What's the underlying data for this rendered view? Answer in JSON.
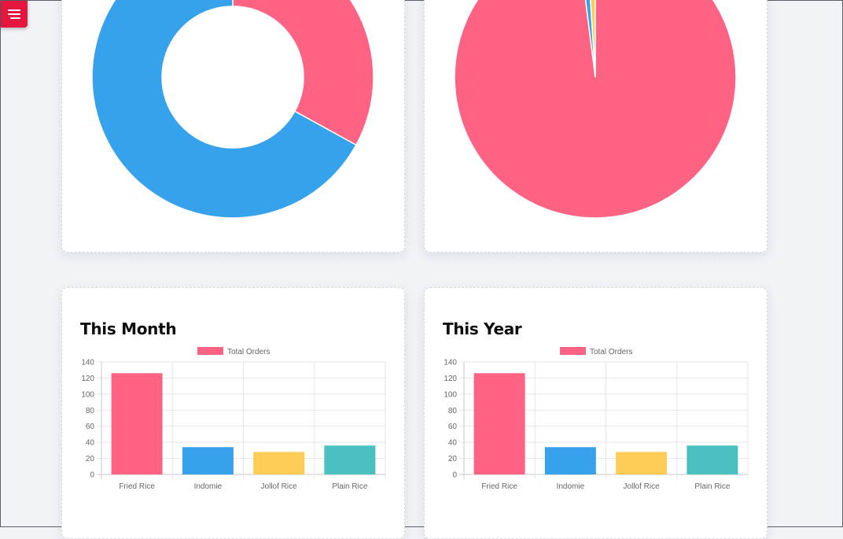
{
  "page": {
    "menu_icon": "hamburger-menu-icon",
    "accent_color": "#e5173f"
  },
  "charts": [
    {
      "type": "doughnut",
      "slices": [
        {
          "value": 33,
          "color": "#ff6384"
        },
        {
          "value": 67,
          "color": "#36a2eb"
        }
      ]
    },
    {
      "type": "pie",
      "slices": [
        {
          "value": 98,
          "color": "#ff6384"
        },
        {
          "value": 1,
          "color": "#36a2eb"
        },
        {
          "value": 1,
          "color": "#ffcd56"
        }
      ]
    }
  ],
  "chart_data": [
    {
      "type": "bar",
      "title": "This Month",
      "legend": {
        "label": "Total Orders",
        "placement": "top"
      },
      "categories": [
        "Fried Rice",
        "Indomie",
        "Jollof Rice",
        "Plain Rice"
      ],
      "values": [
        126,
        34,
        28,
        36
      ],
      "colors": [
        "#ff6384",
        "#36a2eb",
        "#ffcd56",
        "#4bc0c0"
      ],
      "ylim": [
        0,
        140
      ],
      "yticks": [
        "0",
        "20",
        "40",
        "60",
        "80",
        "100",
        "120",
        "140"
      ],
      "grid": true
    },
    {
      "type": "bar",
      "title": "This Year",
      "legend": {
        "label": "Total Orders",
        "placement": "top"
      },
      "categories": [
        "Fried Rice",
        "Indomie",
        "Jollof Rice",
        "Plain Rice"
      ],
      "values": [
        126,
        34,
        28,
        36
      ],
      "colors": [
        "#ff6384",
        "#36a2eb",
        "#ffcd56",
        "#4bc0c0"
      ],
      "ylim": [
        0,
        140
      ],
      "yticks": [
        "0",
        "20",
        "40",
        "60",
        "80",
        "100",
        "120",
        "140"
      ],
      "grid": true
    }
  ]
}
